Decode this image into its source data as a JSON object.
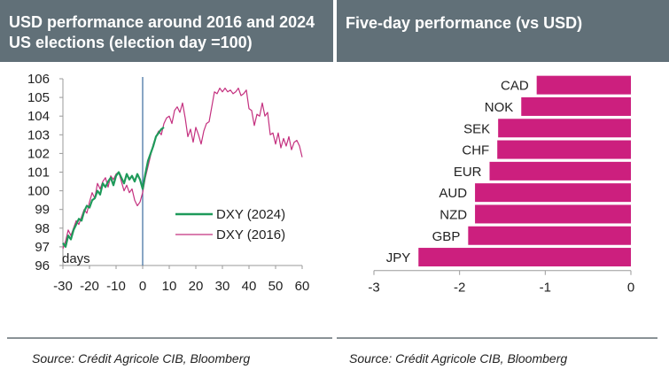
{
  "left_panel": {
    "title": "USD performance around 2016 and 2024 US elections (election day =100)",
    "source": "Source: Crédit Agricole CIB, Bloomberg"
  },
  "right_panel": {
    "title": "Five-day performance (vs USD)",
    "source": "Source: Crédit Agricole CIB, Bloomberg"
  },
  "colors": {
    "header_bg": "#617078",
    "dxy_2024": "#1e9a5a",
    "dxy_2016": "#c4307f",
    "bar": "#cc1f7e",
    "vline": "#3b6c9e"
  },
  "chart_data": [
    {
      "type": "line",
      "title": "USD performance around 2016 and 2024 US elections (election day =100)",
      "xlabel": "days",
      "ylabel": "",
      "xlim": [
        -30,
        60
      ],
      "ylim": [
        96,
        106
      ],
      "x_ticks": [
        "-30",
        "-20",
        "-10",
        "0",
        "10",
        "20",
        "30",
        "40",
        "50",
        "60"
      ],
      "y_ticks": [
        "96",
        "97",
        "98",
        "99",
        "100",
        "101",
        "102",
        "103",
        "104",
        "105",
        "106"
      ],
      "legend_position": "center-right",
      "annotation": "days",
      "vertical_line_at": 0,
      "series": [
        {
          "name": "DXY (2024)",
          "x": [
            -30,
            -29,
            -28,
            -27,
            -26,
            -25,
            -24,
            -23,
            -22,
            -21,
            -20,
            -19,
            -18,
            -17,
            -16,
            -15,
            -14,
            -13,
            -12,
            -11,
            -10,
            -9,
            -8,
            -7,
            -6,
            -5,
            -4,
            -3,
            -2,
            -1,
            0,
            1,
            2,
            3,
            4,
            5,
            6,
            7,
            8
          ],
          "y": [
            97.2,
            97.0,
            97.6,
            97.4,
            97.9,
            98.2,
            98.5,
            98.4,
            98.9,
            99.2,
            99.1,
            99.5,
            99.6,
            100.0,
            99.8,
            100.4,
            100.2,
            100.5,
            100.7,
            100.3,
            100.8,
            101.0,
            100.7,
            100.4,
            100.9,
            100.6,
            100.8,
            100.5,
            100.9,
            100.6,
            100.1,
            100.9,
            101.6,
            102.0,
            102.4,
            102.9,
            103.1,
            103.3,
            103.4
          ]
        },
        {
          "name": "DXY (2016)",
          "x": [
            -30,
            -29,
            -28,
            -27,
            -26,
            -25,
            -24,
            -23,
            -22,
            -21,
            -20,
            -19,
            -18,
            -17,
            -16,
            -15,
            -14,
            -13,
            -12,
            -11,
            -10,
            -9,
            -8,
            -7,
            -6,
            -5,
            -4,
            -3,
            -2,
            -1,
            0,
            1,
            2,
            3,
            4,
            5,
            6,
            7,
            8,
            9,
            10,
            11,
            12,
            13,
            14,
            15,
            16,
            17,
            18,
            19,
            20,
            21,
            22,
            23,
            24,
            25,
            26,
            27,
            28,
            29,
            30,
            31,
            32,
            33,
            34,
            35,
            36,
            37,
            38,
            39,
            40,
            41,
            42,
            43,
            44,
            45,
            46,
            47,
            48,
            49,
            50,
            51,
            52,
            53,
            54,
            55,
            56,
            57,
            58,
            59,
            60
          ],
          "y": [
            96.9,
            97.3,
            97.9,
            97.6,
            98.0,
            98.4,
            98.2,
            98.6,
            99.0,
            98.8,
            99.4,
            99.9,
            99.6,
            100.4,
            100.1,
            100.5,
            100.7,
            100.2,
            100.8,
            100.6,
            100.9,
            101.0,
            100.5,
            100.0,
            100.3,
            99.9,
            100.1,
            99.5,
            99.2,
            99.4,
            99.9,
            100.7,
            101.3,
            101.9,
            102.5,
            102.9,
            103.2,
            103.0,
            103.6,
            103.9,
            104.0,
            103.6,
            104.3,
            104.5,
            104.2,
            104.7,
            103.9,
            102.9,
            103.3,
            102.6,
            103.4,
            103.0,
            102.5,
            103.2,
            103.6,
            103.7,
            104.5,
            105.3,
            105.2,
            105.5,
            105.3,
            105.5,
            105.3,
            105.4,
            105.2,
            105.3,
            105.5,
            105.1,
            105.2,
            105.4,
            104.4,
            104.3,
            103.5,
            104.1,
            104.0,
            104.7,
            104.0,
            104.2,
            103.0,
            103.1,
            102.5,
            103.1,
            102.3,
            102.8,
            102.4,
            102.9,
            102.2,
            102.6,
            102.7,
            102.4,
            101.8
          ]
        }
      ]
    },
    {
      "type": "bar",
      "orientation": "horizontal",
      "title": "Five-day performance (vs USD)",
      "xlabel": "",
      "ylabel": "",
      "xlim": [
        -3,
        0
      ],
      "x_ticks": [
        "-3",
        "-2",
        "-1",
        "0"
      ],
      "categories": [
        "CAD",
        "NOK",
        "SEK",
        "CHF",
        "EUR",
        "AUD",
        "NZD",
        "GBP",
        "JPY"
      ],
      "values": [
        -1.1,
        -1.28,
        -1.55,
        -1.56,
        -1.65,
        -1.82,
        -1.82,
        -1.9,
        -2.48
      ]
    }
  ]
}
